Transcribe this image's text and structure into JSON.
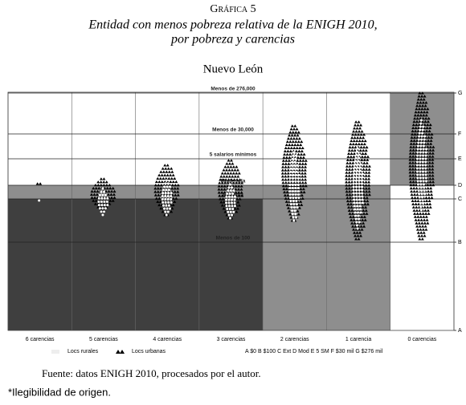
{
  "chart_data": {
    "type": "strip",
    "figure_label": "Gráfica 5",
    "title": "Entidad con menos pobreza relativa de la ENIGH 2010,",
    "subtitle": "por pobreza y carencias",
    "panel_title": "Nuevo León",
    "categories": [
      "6 carencias",
      "5 carencias",
      "4 carencias",
      "3 carencias",
      "2 carencias",
      "1 carencia",
      "0 carencias"
    ],
    "ylim": [
      0,
      297
    ],
    "yticks": [
      {
        "value": 0,
        "label": "A"
      },
      {
        "value": 110,
        "label": "B"
      },
      {
        "value": 164,
        "label": "C"
      },
      {
        "value": 181,
        "label": "D"
      },
      {
        "value": 214,
        "label": "E"
      },
      {
        "value": 245,
        "label": "F"
      },
      {
        "value": 296,
        "label": "G"
      }
    ],
    "reference_lines": [
      {
        "value": 296,
        "label": "Menos de 276,000"
      },
      {
        "value": 245,
        "label": "Menos de 30,000"
      },
      {
        "value": 214,
        "label": "5 salarios mínimos"
      },
      {
        "value": 181,
        "label": "Moderada"
      },
      {
        "value": 164,
        "label": "Extrema"
      },
      {
        "value": 110,
        "label": "Menos de 100"
      }
    ],
    "bands": [
      [
        {
          "from": 0,
          "to": 164,
          "color": "#3f3f3f"
        },
        {
          "from": 164,
          "to": 181,
          "color": "#8e8e8e"
        }
      ],
      [
        {
          "from": 0,
          "to": 164,
          "color": "#3f3f3f"
        },
        {
          "from": 164,
          "to": 181,
          "color": "#8e8e8e"
        }
      ],
      [
        {
          "from": 0,
          "to": 164,
          "color": "#3f3f3f"
        },
        {
          "from": 164,
          "to": 181,
          "color": "#8e8e8e"
        }
      ],
      [
        {
          "from": 0,
          "to": 164,
          "color": "#3f3f3f"
        },
        {
          "from": 164,
          "to": 181,
          "color": "#8e8e8e"
        }
      ],
      [
        {
          "from": 0,
          "to": 181,
          "color": "#8e8e8e"
        }
      ],
      [
        {
          "from": 0,
          "to": 181,
          "color": "#8e8e8e"
        }
      ],
      [
        {
          "from": 181,
          "to": 296,
          "color": "#8e8e8e"
        }
      ]
    ],
    "series": [
      {
        "name": "Locs urbanas",
        "color": "#000000",
        "low": [
          183,
          150,
          144,
          140,
          137,
          114,
          114
        ],
        "high": [
          183,
          189,
          206,
          212,
          255,
          260,
          296
        ]
      },
      {
        "name": "Locs rurales",
        "color": "#ffffff",
        "low": [
          162,
          144,
          144,
          140,
          137,
          127,
          150
        ],
        "high": [
          162,
          177,
          187,
          182,
          222,
          227,
          262
        ]
      }
    ],
    "key": "A $0  B $100  C Ext  D Mod  E 5 SM  F $30 mil  G $276 mil",
    "source": "Fuente: datos ENIGH 2010, procesados por el autor.",
    "note": "*Ilegibilidad de origen."
  }
}
